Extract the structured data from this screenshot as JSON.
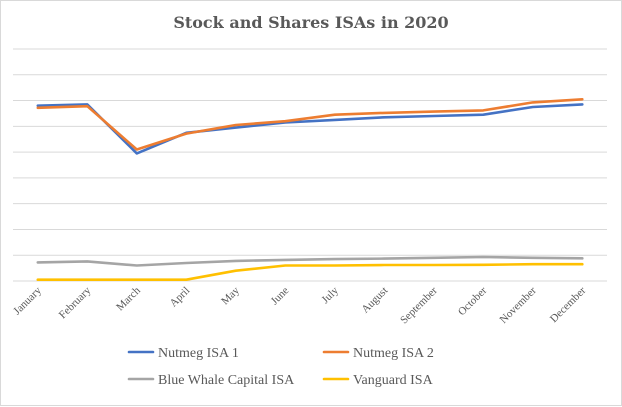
{
  "chart_data": {
    "type": "line",
    "title": "Stock and Shares ISAs in 2020",
    "xlabel": "",
    "ylabel": "",
    "ylim": [
      0,
      9
    ],
    "y_gridlines": [
      0,
      1,
      2,
      3,
      4,
      5,
      6,
      7,
      8,
      9
    ],
    "y_tick_labels_shown": false,
    "legend_position": "bottom",
    "categories": [
      "January",
      "February",
      "March",
      "April",
      "May",
      "June",
      "July",
      "August",
      "September",
      "October",
      "November",
      "December"
    ],
    "series": [
      {
        "name": "Nutmeg ISA 1",
        "color": "#4472C4",
        "values": [
          6.8,
          6.85,
          4.95,
          5.75,
          5.95,
          6.15,
          6.25,
          6.35,
          6.4,
          6.45,
          6.75,
          6.85
        ]
      },
      {
        "name": "Nutmeg ISA 2",
        "color": "#ED7D31",
        "values": [
          6.72,
          6.78,
          5.1,
          5.72,
          6.05,
          6.2,
          6.45,
          6.52,
          6.57,
          6.62,
          6.93,
          7.05
        ]
      },
      {
        "name": "Blue Whale Capital ISA",
        "color": "#A5A5A5",
        "values": [
          0.72,
          0.76,
          0.6,
          0.7,
          0.78,
          0.82,
          0.85,
          0.87,
          0.9,
          0.93,
          0.9,
          0.88
        ]
      },
      {
        "name": "Vanguard ISA",
        "color": "#FFC000",
        "values": [
          0.05,
          0.05,
          0.05,
          0.05,
          0.4,
          0.6,
          0.6,
          0.62,
          0.62,
          0.63,
          0.65,
          0.65
        ]
      }
    ]
  }
}
